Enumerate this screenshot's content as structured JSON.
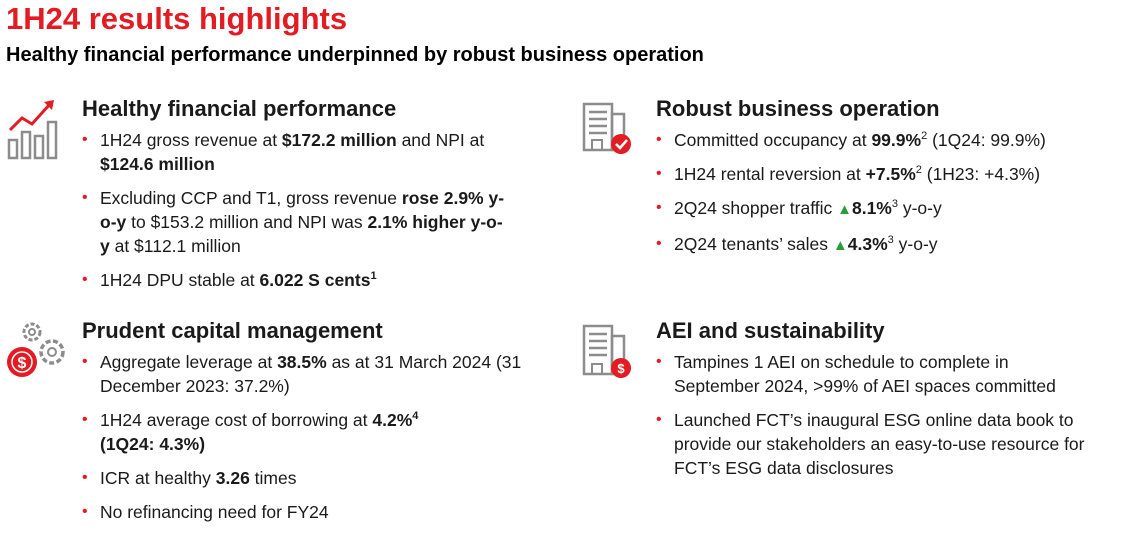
{
  "header": {
    "title": "1H24 results highlights",
    "subtitle": "Healthy financial performance underpinned by robust business operation"
  },
  "sections": {
    "financial": {
      "icon": "bar-chart-trend-icon",
      "heading": "Healthy financial performance",
      "b1": {
        "t1": "1H24 gross revenue at ",
        "b1": "$172.2 million",
        "t2": " and NPI at ",
        "b2": "$124.6 million"
      },
      "b2": {
        "t1": "Excluding CCP and T1, gross revenue ",
        "b1": "rose 2.9% y-o-y",
        "t2": " to $153.2 million and NPI was ",
        "b2": "2.1% higher y-o-y",
        "t3": " at $112.1 million"
      },
      "b3": {
        "t1": "1H24 DPU stable at ",
        "b1": "6.022 S cents",
        "sup": "1"
      }
    },
    "capital": {
      "icon": "gears-dollar-icon",
      "heading": "Prudent capital management",
      "b1": {
        "t1": "Aggregate leverage at ",
        "b1": "38.5%",
        "t2": " as at 31 March 2024 (31 December 2023: 37.2%)"
      },
      "b2": {
        "t1": "1H24 average cost of borrowing at ",
        "b1": "4.2%",
        "sup": "4",
        "b2": "(1Q24: 4.3%)"
      },
      "b3": {
        "t1": "ICR at healthy ",
        "b1": "3.26",
        "t2": " times"
      },
      "b4": {
        "t1": "No refinancing need for FY24"
      }
    },
    "operation": {
      "icon": "building-check-icon",
      "heading": "Robust business operation",
      "b1": {
        "t1": "Committed occupancy at ",
        "b1": "99.9%",
        "sup": "2",
        "t2": " (1Q24: 99.9%)"
      },
      "b2": {
        "t1": "1H24 rental reversion at ",
        "b1": "+7.5%",
        "sup": "2",
        "t2": " (1H23: +4.3%)"
      },
      "b3": {
        "t1": "2Q24 shopper traffic ",
        "tri": "▲",
        "b1": "8.1%",
        "sup": "3",
        "t2": " y-o-y"
      },
      "b4": {
        "t1": "2Q24 tenants’ sales ",
        "tri": "▲",
        "b1": "4.3%",
        "sup": "3",
        "t2": " y-o-y"
      }
    },
    "aei": {
      "icon": "building-dollar-icon",
      "heading": "AEI and sustainability",
      "b1": {
        "t1": "Tampines 1 AEI on schedule to complete in September 2024, >99% of AEI spaces committed"
      },
      "b2": {
        "t1": "Launched FCT’s inaugural ESG online data book to provide our stakeholders an easy-to-use resource for FCT’s ESG data disclosures"
      }
    }
  },
  "colors": {
    "accent": "#e31b23",
    "icon_gray": "#8c8c8c",
    "up_green": "#2a9d3a"
  }
}
